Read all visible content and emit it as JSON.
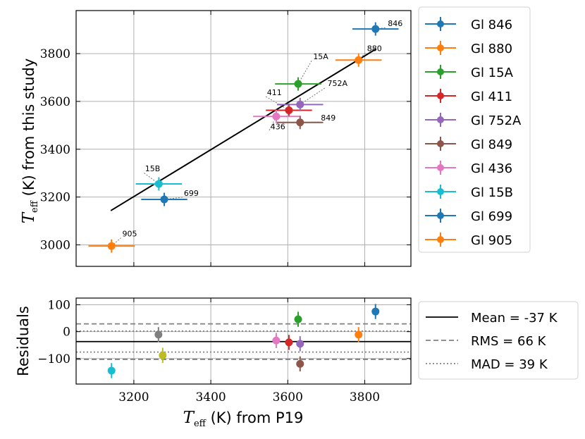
{
  "chart_data": [
    {
      "type": "scatter",
      "panel": "main",
      "xlabel_math": "T",
      "xlabel_sub": "eff",
      "xlabel_text": " (K) from P19",
      "ylabel_math": "T",
      "ylabel_sub": "eff",
      "ylabel_text": " (K) from this study",
      "xlim": [
        3050,
        3920
      ],
      "ylim": [
        2910,
        3980
      ],
      "xticks": [
        3200,
        3400,
        3600,
        3800
      ],
      "yticks": [
        3000,
        3200,
        3400,
        3600,
        3800
      ],
      "fit_line": {
        "x": [
          3140,
          3830
        ],
        "y": [
          3143,
          3820
        ]
      },
      "series": [
        {
          "name": "Gl 846",
          "color": "#1f77b4",
          "x": 3828,
          "y": 3903,
          "xerr": 60,
          "yerr": 28,
          "annotation": "846",
          "ann_dx": 3860,
          "ann_dy": 3915
        },
        {
          "name": "Gl 880",
          "color": "#ff7f0e",
          "x": 3784,
          "y": 3773,
          "xerr": 60,
          "yerr": 28,
          "annotation": "880",
          "ann_dx": 3806,
          "ann_dy": 3810
        },
        {
          "name": "Gl 15A",
          "color": "#2ca02c",
          "x": 3627,
          "y": 3673,
          "xerr": 60,
          "yerr": 28,
          "annotation": "15A",
          "ann_dx": 3666,
          "ann_dy": 3777
        },
        {
          "name": "Gl 411",
          "color": "#d62728",
          "x": 3603,
          "y": 3563,
          "xerr": 60,
          "yerr": 28,
          "annotation": "411",
          "ann_dx": 3546,
          "ann_dy": 3627
        },
        {
          "name": "Gl 752A",
          "color": "#9467bd",
          "x": 3632,
          "y": 3587,
          "xerr": 60,
          "yerr": 28,
          "annotation": "752A",
          "ann_dx": 3703,
          "ann_dy": 3665
        },
        {
          "name": "Gl 849",
          "color": "#8c564b",
          "x": 3632,
          "y": 3512,
          "xerr": 60,
          "yerr": 28,
          "annotation": "849",
          "ann_dx": 3686,
          "ann_dy": 3520
        },
        {
          "name": "Gl 436",
          "color": "#e377c2",
          "x": 3570,
          "y": 3537,
          "xerr": 60,
          "yerr": 28,
          "annotation": "436",
          "ann_dx": 3555,
          "ann_dy": 3483
        },
        {
          "name": "Gl 15B",
          "color": "#17becf",
          "x": 3265,
          "y": 3255,
          "xerr": 60,
          "yerr": 28,
          "annotation": "15B",
          "ann_dx": 3229,
          "ann_dy": 3308
        },
        {
          "name": "Gl 699",
          "color": "#1f77b4",
          "x": 3279,
          "y": 3190,
          "xerr": 60,
          "yerr": 28,
          "annotation": "699",
          "ann_dx": 3330,
          "ann_dy": 3205
        },
        {
          "name": "Gl 905",
          "color": "#ff7f0e",
          "x": 3142,
          "y": 2995,
          "xerr": 60,
          "yerr": 28,
          "annotation": "905",
          "ann_dx": 3170,
          "ann_dy": 3035
        }
      ]
    },
    {
      "type": "scatter",
      "panel": "residuals",
      "ylabel": "Residuals",
      "xlim": [
        3050,
        3920
      ],
      "ylim": [
        -195,
        125
      ],
      "yticks": [
        -100,
        0,
        100
      ],
      "yticklabels": [
        "−100",
        "0",
        "100"
      ],
      "hlines": [
        {
          "label": "Mean = -37 K",
          "y": -37,
          "style": "solid"
        },
        {
          "label": "RMS = 66 K",
          "y": 29,
          "style": "dashed"
        },
        {
          "label": "RMS = 66 K",
          "y": -103,
          "style": "dashed",
          "legend": false
        },
        {
          "label": "MAD = 39 K",
          "y": 2,
          "style": "dotted"
        },
        {
          "label": "MAD = 39 K",
          "y": -76,
          "style": "dotted",
          "legend": false
        }
      ],
      "points": [
        {
          "x": 3828,
          "y": 75,
          "yerr": 28,
          "color": "#1f77b4"
        },
        {
          "x": 3784,
          "y": -11,
          "yerr": 28,
          "color": "#ff7f0e"
        },
        {
          "x": 3627,
          "y": 46,
          "yerr": 28,
          "color": "#2ca02c"
        },
        {
          "x": 3603,
          "y": -40,
          "yerr": 28,
          "color": "#d62728"
        },
        {
          "x": 3632,
          "y": -45,
          "yerr": 28,
          "color": "#9467bd"
        },
        {
          "x": 3632,
          "y": -120,
          "yerr": 28,
          "color": "#8c564b"
        },
        {
          "x": 3570,
          "y": -33,
          "yerr": 28,
          "color": "#e377c2"
        },
        {
          "x": 3142,
          "y": -145,
          "yerr": 28,
          "color": "#17becf"
        },
        {
          "x": 3264,
          "y": -11,
          "yerr": 28,
          "color": "#7f7f7f"
        },
        {
          "x": 3275,
          "y": -88,
          "yerr": 28,
          "color": "#bcbd22"
        }
      ]
    }
  ]
}
